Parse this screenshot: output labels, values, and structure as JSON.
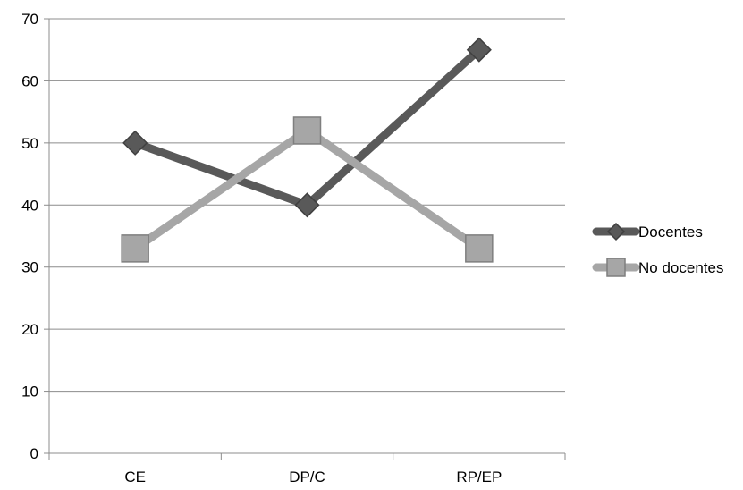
{
  "chart_data": {
    "type": "line",
    "categories": [
      "CE",
      "DP/C",
      "RP/EP"
    ],
    "series": [
      {
        "name": "Docentes",
        "values": [
          50,
          40,
          65
        ],
        "color": "#595959",
        "marker": "diamond"
      },
      {
        "name": "No docentes",
        "values": [
          33,
          52,
          33
        ],
        "color": "#a6a6a6",
        "marker": "square"
      }
    ],
    "ylim": [
      0,
      70
    ],
    "yticks": [
      0,
      10,
      20,
      30,
      40,
      50,
      60,
      70
    ],
    "title": "",
    "xlabel": "",
    "ylabel": "",
    "grid": true,
    "legend_position": "right"
  }
}
